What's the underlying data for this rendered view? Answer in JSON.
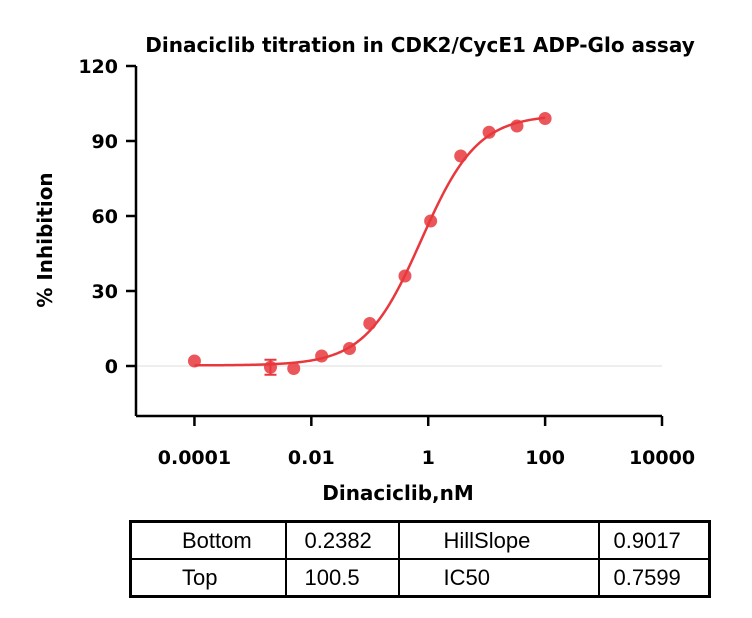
{
  "chart_data": {
    "type": "scatter",
    "title": "Dinaciclib titration in CDK2/CycE1 ADP-Glo assay",
    "xlabel": "Dinaciclib,nM",
    "ylabel": "% Inhibition",
    "x_scale": "log",
    "xlim": [
      1e-05,
      10000
    ],
    "ylim": [
      -20,
      120
    ],
    "x_ticks": [
      0.0001,
      0.01,
      1,
      100,
      10000
    ],
    "x_tick_labels": [
      "0.0001",
      "0.01",
      "1",
      "100",
      "10000"
    ],
    "y_ticks": [
      0,
      30,
      60,
      90,
      120
    ],
    "y_tick_labels": [
      "0",
      "30",
      "60",
      "90",
      "120"
    ],
    "grid": false,
    "baseline_y": 0,
    "series": [
      {
        "color": "#e8383d",
        "points": [
          {
            "x": 0.0001,
            "y": 2,
            "err": 0
          },
          {
            "x": 0.002,
            "y": -0.5,
            "err": 3
          },
          {
            "x": 0.005,
            "y": -1,
            "err": 0
          },
          {
            "x": 0.015,
            "y": 4,
            "err": 0
          },
          {
            "x": 0.045,
            "y": 7,
            "err": 0
          },
          {
            "x": 0.1,
            "y": 17,
            "err": 0
          },
          {
            "x": 0.4,
            "y": 36,
            "err": 0
          },
          {
            "x": 1.1,
            "y": 58,
            "err": 0
          },
          {
            "x": 3.6,
            "y": 84,
            "err": 0
          },
          {
            "x": 11,
            "y": 93.5,
            "err": 0
          },
          {
            "x": 33,
            "y": 96,
            "err": 0
          },
          {
            "x": 100,
            "y": 99,
            "err": 0
          }
        ],
        "fit": {
          "model": "4PL",
          "bottom": 0.2382,
          "top": 100.5,
          "ic50": 0.7599,
          "hillslope": 0.9017
        }
      }
    ]
  },
  "params_table": {
    "rows": [
      [
        "Bottom",
        "0.2382",
        "HillSlope",
        "0.9017"
      ],
      [
        "Top",
        "100.5",
        "IC50",
        "0.7599"
      ]
    ]
  }
}
